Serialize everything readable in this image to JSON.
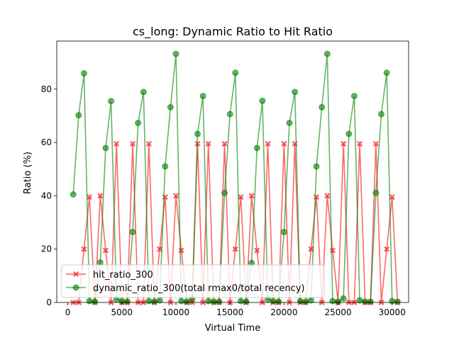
{
  "chart_data": {
    "type": "line",
    "title": "cs_long: Dynamic Ratio to Hit Ratio",
    "xlabel": "Virtual Time",
    "ylabel": "Ratio (%)",
    "xlim": [
      -1025,
      31525
    ],
    "ylim": [
      0,
      98
    ],
    "xticks": [
      0,
      5000,
      10000,
      15000,
      20000,
      25000,
      30000
    ],
    "yticks": [
      0,
      20,
      40,
      60,
      80
    ],
    "legend_position": "lower-left",
    "series": [
      {
        "name": "hit_ratio_300",
        "color": "#ff0000",
        "marker": "X",
        "points": [
          [
            500,
            0
          ],
          [
            1000,
            0
          ],
          [
            1500,
            20
          ],
          [
            2000,
            39.5
          ],
          [
            2500,
            0
          ],
          [
            3000,
            40
          ],
          [
            3500,
            19.5
          ],
          [
            4000,
            0
          ],
          [
            4500,
            59.5
          ],
          [
            5000,
            0
          ],
          [
            5500,
            0
          ],
          [
            6000,
            59.5
          ],
          [
            6500,
            0
          ],
          [
            7000,
            0
          ],
          [
            7500,
            59.5
          ],
          [
            8000,
            0
          ],
          [
            8500,
            20
          ],
          [
            9000,
            39.5
          ],
          [
            9500,
            0
          ],
          [
            10000,
            40
          ],
          [
            10500,
            19.5
          ],
          [
            11000,
            0
          ],
          [
            11500,
            0
          ],
          [
            12000,
            59.5
          ],
          [
            12500,
            0
          ],
          [
            13000,
            59.5
          ],
          [
            13500,
            0
          ],
          [
            14000,
            0
          ],
          [
            14500,
            59.5
          ],
          [
            15000,
            0
          ],
          [
            15500,
            20
          ],
          [
            16000,
            39.5
          ],
          [
            16500,
            0
          ],
          [
            17000,
            40
          ],
          [
            17500,
            19.5
          ],
          [
            18000,
            0
          ],
          [
            18500,
            59.5
          ],
          [
            19000,
            0
          ],
          [
            19500,
            0
          ],
          [
            20000,
            59.5
          ],
          [
            20500,
            0
          ],
          [
            21000,
            59.5
          ],
          [
            21500,
            0
          ],
          [
            22000,
            0
          ],
          [
            22500,
            20
          ],
          [
            23000,
            39.5
          ],
          [
            23500,
            0
          ],
          [
            24000,
            40
          ],
          [
            24500,
            19.5
          ],
          [
            25000,
            0
          ],
          [
            25500,
            59.5
          ],
          [
            26000,
            0
          ],
          [
            26500,
            0
          ],
          [
            27000,
            59.5
          ],
          [
            27500,
            0
          ],
          [
            28000,
            0
          ],
          [
            28500,
            59.5
          ],
          [
            29000,
            0
          ],
          [
            29500,
            20
          ],
          [
            30000,
            39.5
          ],
          [
            30500,
            0
          ]
        ]
      },
      {
        "name": "dynamic_ratio_300(total rmax0/total recency)",
        "color": "#008000",
        "marker": "o",
        "points": [
          [
            500,
            40.5
          ],
          [
            1000,
            70.2
          ],
          [
            1500,
            85.9
          ],
          [
            2000,
            0.5
          ],
          [
            2500,
            0.3
          ],
          [
            3000,
            15
          ],
          [
            3500,
            57.9
          ],
          [
            4000,
            75.5
          ],
          [
            4500,
            1.2
          ],
          [
            5000,
            0.5
          ],
          [
            5500,
            0.3
          ],
          [
            6000,
            26.4
          ],
          [
            6500,
            67.3
          ],
          [
            7000,
            78.9
          ],
          [
            7500,
            0.5
          ],
          [
            8000,
            0.3
          ],
          [
            8500,
            0.8
          ],
          [
            9000,
            51
          ],
          [
            9500,
            73.2
          ],
          [
            10000,
            93.2
          ],
          [
            10500,
            0.5
          ],
          [
            11000,
            0.3
          ],
          [
            11500,
            1.2
          ],
          [
            12000,
            63.2
          ],
          [
            12500,
            77.4
          ],
          [
            13000,
            0.5
          ],
          [
            13500,
            0.3
          ],
          [
            14000,
            0.3
          ],
          [
            14500,
            41.1
          ],
          [
            15000,
            70.6
          ],
          [
            15500,
            86.1
          ],
          [
            16000,
            0.5
          ],
          [
            16500,
            0.3
          ],
          [
            17000,
            14.8
          ],
          [
            17500,
            57.9
          ],
          [
            18000,
            75.6
          ],
          [
            18500,
            1.2
          ],
          [
            19000,
            0.5
          ],
          [
            19500,
            0.3
          ],
          [
            20000,
            26.4
          ],
          [
            20500,
            67.3
          ],
          [
            21000,
            78.9
          ],
          [
            21500,
            0.5
          ],
          [
            22000,
            0.3
          ],
          [
            22500,
            0.8
          ],
          [
            23000,
            51
          ],
          [
            23500,
            73.2
          ],
          [
            24000,
            93.2
          ],
          [
            24500,
            0.5
          ],
          [
            25000,
            0.3
          ],
          [
            25500,
            1.5
          ],
          [
            26000,
            63.2
          ],
          [
            26500,
            77.4
          ],
          [
            27000,
            0.8
          ],
          [
            27500,
            0.3
          ],
          [
            28000,
            0.3
          ],
          [
            28500,
            41.1
          ],
          [
            29000,
            70.6
          ],
          [
            29500,
            86.1
          ],
          [
            30000,
            0.5
          ],
          [
            30500,
            0.3
          ]
        ]
      }
    ]
  }
}
